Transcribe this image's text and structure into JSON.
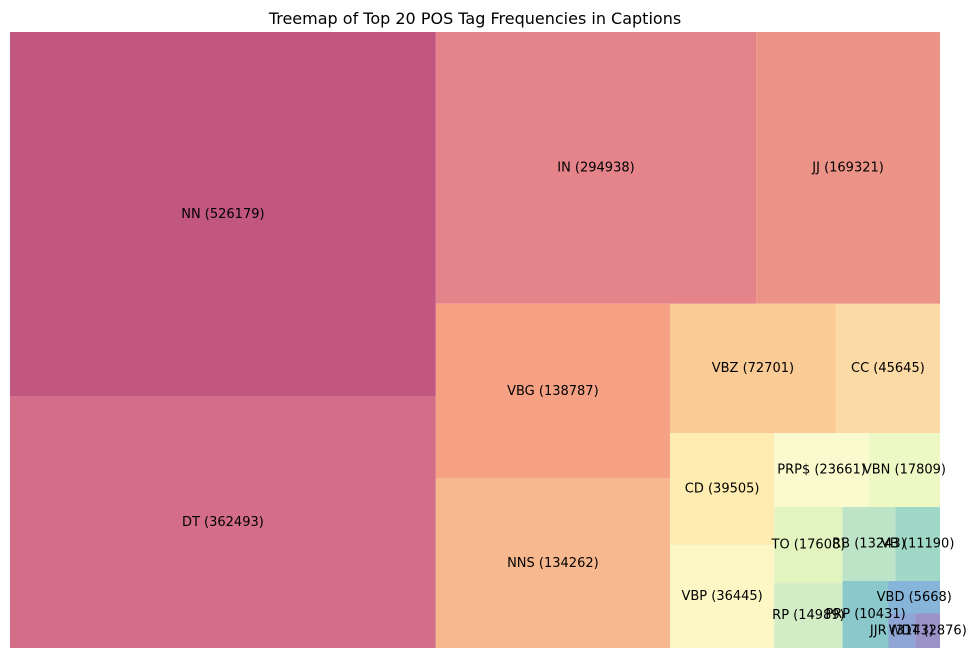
{
  "chart_data": {
    "type": "treemap",
    "title": "Treemap of Top 20 POS Tag Frequencies in Captions",
    "xlabel": "",
    "ylabel": "",
    "grid": false,
    "legend": "none",
    "items": [
      {
        "tag": "NN",
        "value": 526179,
        "label": "NN (526179)",
        "color": "#c1567f"
      },
      {
        "tag": "DT",
        "value": 362493,
        "label": "DT (362493)",
        "color": "#d46e88"
      },
      {
        "tag": "IN",
        "value": 294938,
        "label": "IN (294938)",
        "color": "#e4848a"
      },
      {
        "tag": "JJ",
        "value": 169321,
        "label": "JJ (169321)",
        "color": "#ec9388"
      },
      {
        "tag": "VBG",
        "value": 138787,
        "label": "VBG (138787)",
        "color": "#f6a183"
      },
      {
        "tag": "NNS",
        "value": 134262,
        "label": "NNS (134262)",
        "color": "#f8b88e"
      },
      {
        "tag": "VBZ",
        "value": 72701,
        "label": "VBZ (72701)",
        "color": "#fbcb96"
      },
      {
        "tag": "CC",
        "value": 45645,
        "label": "CC (45645)",
        "color": "#fcdaa5"
      },
      {
        "tag": "CD",
        "value": 39505,
        "label": "CD (39505)",
        "color": "#feecb1"
      },
      {
        "tag": "VBP",
        "value": 36445,
        "label": "VBP (36445)",
        "color": "#fdf6c5"
      },
      {
        "tag": "PRP$",
        "value": 23661,
        "label": "PRP$ (23661)",
        "color": "#f9fbcf"
      },
      {
        "tag": "VBN",
        "value": 17809,
        "label": "VBN (17809)",
        "color": "#eef8c4"
      },
      {
        "tag": "TO",
        "value": 17608,
        "label": "TO (17608)",
        "color": "#e2f4c0"
      },
      {
        "tag": "RP",
        "value": 14989,
        "label": "RP (14989)",
        "color": "#d2ecc6"
      },
      {
        "tag": "RB",
        "value": 13243,
        "label": "RB (13243)",
        "color": "#bde4c6"
      },
      {
        "tag": "VB",
        "value": 11190,
        "label": "VB (11190)",
        "color": "#9fd8c6"
      },
      {
        "tag": "PRP",
        "value": 10431,
        "label": "PRP (10431)",
        "color": "#8ac8cc"
      },
      {
        "tag": "VBD",
        "value": 5668,
        "label": "VBD (5668)",
        "color": "#86b5d9"
      },
      {
        "tag": "JJR",
        "value": 3143,
        "label": "JJR (3143)",
        "color": "#8ea5d5"
      },
      {
        "tag": "WDT",
        "value": 2876,
        "label": "WDT (2876)",
        "color": "#9b92c8"
      }
    ]
  }
}
